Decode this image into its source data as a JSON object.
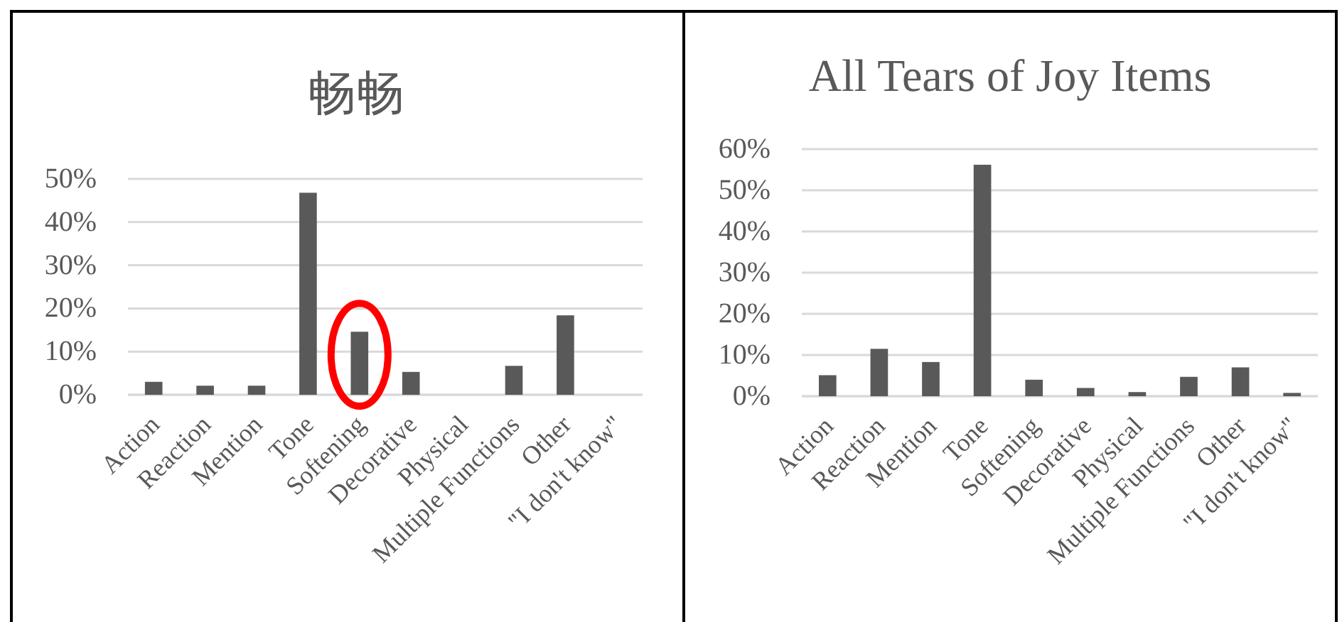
{
  "chart_data": [
    {
      "type": "bar",
      "title": "畅畅",
      "categories": [
        "Action",
        "Reaction",
        "Mention",
        "Tone",
        "Softening",
        "Decorative",
        "Physical",
        "Multiple Functions",
        "Other",
        "\"I don't know\""
      ],
      "values": [
        3.0,
        2.1,
        2.1,
        46.8,
        14.6,
        5.3,
        0,
        6.7,
        18.4,
        0
      ],
      "color": "#595959",
      "ylim": [
        0,
        50
      ],
      "yticks": [
        {
          "value": 0,
          "label": "0%"
        },
        {
          "value": 10,
          "label": "10%"
        },
        {
          "value": 20,
          "label": "20%"
        },
        {
          "value": 30,
          "label": "30%"
        },
        {
          "value": 40,
          "label": "40%"
        },
        {
          "value": 50,
          "label": "50%"
        }
      ],
      "grid": "y"
    },
    {
      "type": "bar",
      "title": "All Tears of Joy Items",
      "categories": [
        "Action",
        "Reaction",
        "Mention",
        "Tone",
        "Softening",
        "Decorative",
        "Physical",
        "Multiple Functions",
        "Other",
        "\"I don't know\""
      ],
      "values": [
        5.1,
        11.5,
        8.3,
        56.2,
        4.0,
        2.0,
        1.0,
        4.7,
        7.0,
        0.8
      ],
      "color": "#595959",
      "ylim": [
        0,
        60
      ],
      "yticks": [
        {
          "value": 0,
          "label": "0%"
        },
        {
          "value": 10,
          "label": "10%"
        },
        {
          "value": 20,
          "label": "20%"
        },
        {
          "value": 30,
          "label": "30%"
        },
        {
          "value": 40,
          "label": "40%"
        },
        {
          "value": 50,
          "label": "50%"
        },
        {
          "value": 60,
          "label": "60%"
        }
      ],
      "grid": "y"
    }
  ]
}
